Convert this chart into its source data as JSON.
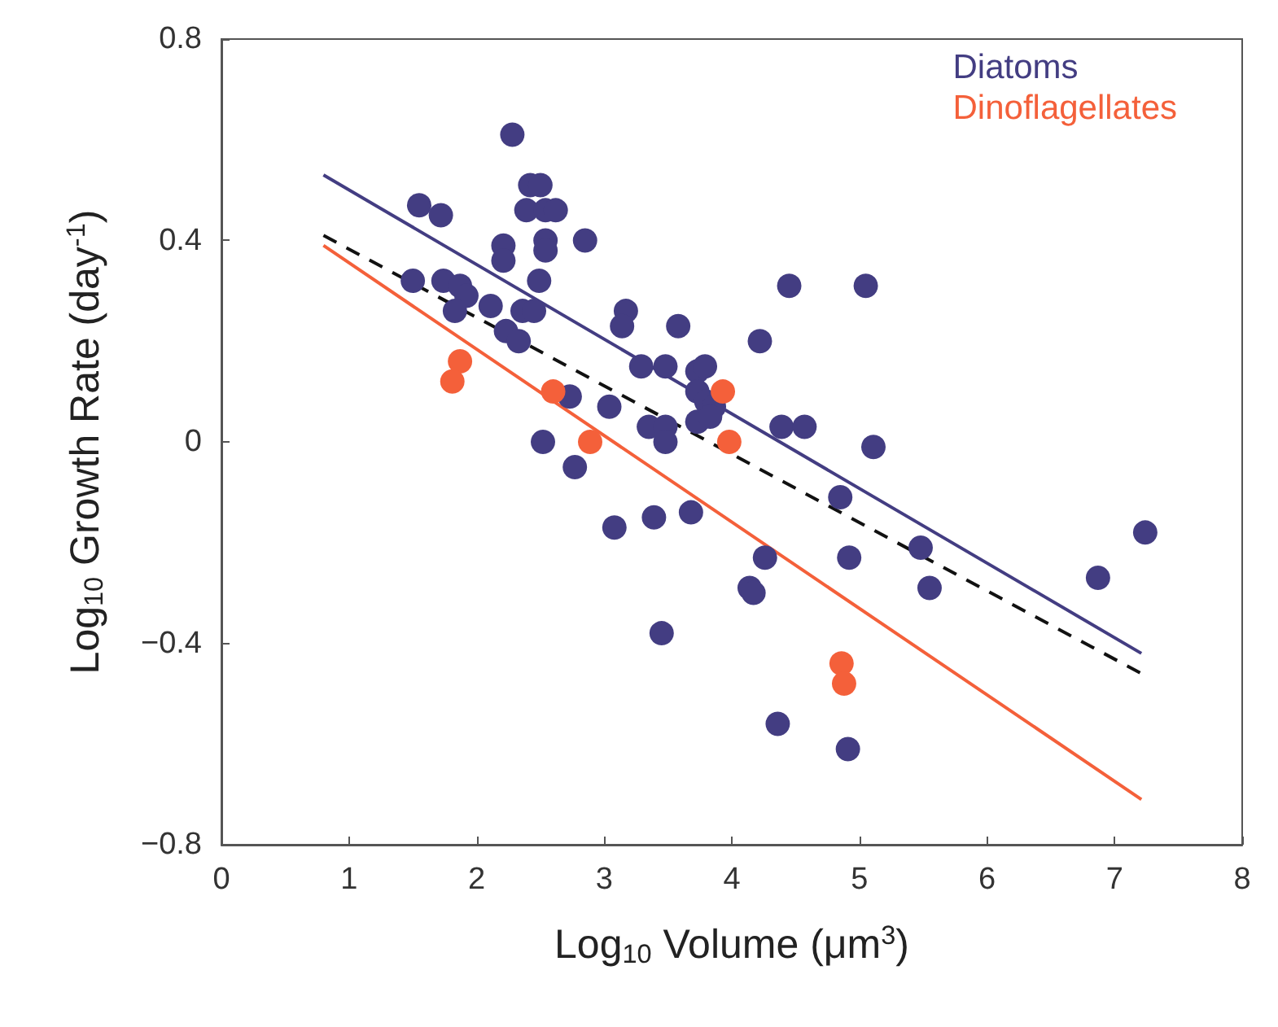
{
  "chart_data": {
    "type": "scatter",
    "xlabel": "Log$_{10}$ Volume (μm$^{3}$)",
    "ylabel": "Log$_{10}$ Growth Rate (day$^{-1}$)",
    "xlim": [
      0,
      8
    ],
    "xticks": [
      0,
      1,
      2,
      3,
      4,
      5,
      6,
      7,
      8
    ],
    "ylim": [
      -0.8,
      0.8
    ],
    "yticks": [
      {
        "value": -0.8,
        "label": "−0.8"
      },
      {
        "value": -0.4,
        "label": "−0.4"
      },
      0,
      0.4,
      0.8
    ],
    "grid": false,
    "legend": "top right",
    "marker": "circle",
    "series": [
      {
        "name": "Diatoms",
        "color": "#433d82",
        "x": [
          2.28,
          1.55,
          1.72,
          2.42,
          2.5,
          2.39,
          2.54,
          2.62,
          2.21,
          2.21,
          2.54,
          2.54,
          2.85,
          1.5,
          1.74,
          1.87,
          1.92,
          1.83,
          2.11,
          2.36,
          2.45,
          2.49,
          2.23,
          2.33,
          3.17,
          3.14,
          3.58,
          4.22,
          3.29,
          3.48,
          3.73,
          3.79,
          3.73,
          3.8,
          3.86,
          3.73,
          3.83,
          3.35,
          3.48,
          3.48,
          3.04,
          2.73,
          2.52,
          2.77,
          4.39,
          4.57,
          5.11,
          4.85,
          5.48,
          4.92,
          5.55,
          4.26,
          4.14,
          4.17,
          3.68,
          3.39,
          3.08,
          3.45,
          4.36,
          4.91,
          6.87,
          7.24,
          4.45,
          5.05
        ],
        "values": [
          0.61,
          0.47,
          0.45,
          0.51,
          0.51,
          0.46,
          0.46,
          0.46,
          0.39,
          0.36,
          0.4,
          0.38,
          0.4,
          0.32,
          0.32,
          0.31,
          0.29,
          0.26,
          0.27,
          0.26,
          0.26,
          0.32,
          0.22,
          0.2,
          0.26,
          0.23,
          0.23,
          0.2,
          0.15,
          0.15,
          0.14,
          0.15,
          0.1,
          0.08,
          0.07,
          0.04,
          0.05,
          0.03,
          0.03,
          0.0,
          0.07,
          0.09,
          0.0,
          -0.05,
          0.03,
          0.03,
          -0.01,
          -0.11,
          -0.21,
          -0.23,
          -0.29,
          -0.23,
          -0.29,
          -0.3,
          -0.14,
          -0.15,
          -0.17,
          -0.38,
          -0.56,
          -0.61,
          -0.27,
          -0.18,
          0.31,
          0.31
        ]
      },
      {
        "name": "Dinoflagellates",
        "color": "#f4603a",
        "x": [
          1.87,
          1.81,
          2.6,
          2.89,
          3.93,
          3.98,
          4.86,
          4.88
        ],
        "values": [
          0.16,
          0.12,
          0.1,
          0.0,
          0.1,
          0.0,
          -0.44,
          -0.48
        ]
      },
      {
        "type": "line",
        "color": "#433d82",
        "x": [
          0.8,
          7.21
        ],
        "values": [
          0.53,
          -0.42
        ],
        "marker": "none",
        "line_style": "solid"
      },
      {
        "type": "line",
        "color": "#f4603a",
        "x": [
          0.8,
          7.21
        ],
        "values": [
          0.39,
          -0.71
        ],
        "marker": "none",
        "line_style": "solid"
      },
      {
        "type": "line",
        "color": "#111111",
        "x": [
          0.8,
          7.21
        ],
        "values": [
          0.41,
          -0.46
        ],
        "marker": "none",
        "line_style": "dashed"
      }
    ]
  }
}
